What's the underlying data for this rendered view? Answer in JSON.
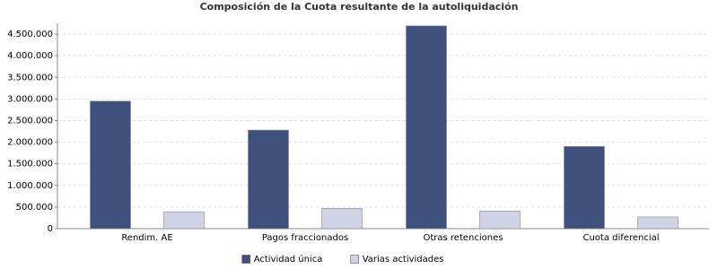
{
  "chart_data": {
    "type": "bar",
    "title": "Composición de la Cuota resultante de la autoliquidación",
    "categories": [
      "Rendim. AE",
      "Pagos fraccionados",
      "Otras retenciones",
      "Cuota diferencial"
    ],
    "series": [
      {
        "name": "Actividad única",
        "color": "#3f507c",
        "values": [
          2950000,
          2280000,
          4690000,
          1900000
        ]
      },
      {
        "name": "Varias actividades",
        "color": "#d0d3e6",
        "values": [
          390000,
          470000,
          410000,
          270000
        ]
      }
    ],
    "ylim": [
      0,
      4750000
    ],
    "yticks": [
      0,
      {
        "value": 500000,
        "label": "500.000"
      },
      {
        "value": 1000000,
        "label": "1.000.000"
      },
      {
        "value": 1500000,
        "label": "1.500.000"
      },
      {
        "value": 2000000,
        "label": "2.000.000"
      },
      {
        "value": 2500000,
        "label": "2.500.000"
      },
      {
        "value": 3000000,
        "label": "3.000.000"
      },
      {
        "value": 3500000,
        "label": "3.500.000"
      },
      {
        "value": 4000000,
        "label": "4.000.000"
      },
      {
        "value": 4500000,
        "label": "4.500.000"
      }
    ],
    "grid": true,
    "legend": "bottom"
  }
}
